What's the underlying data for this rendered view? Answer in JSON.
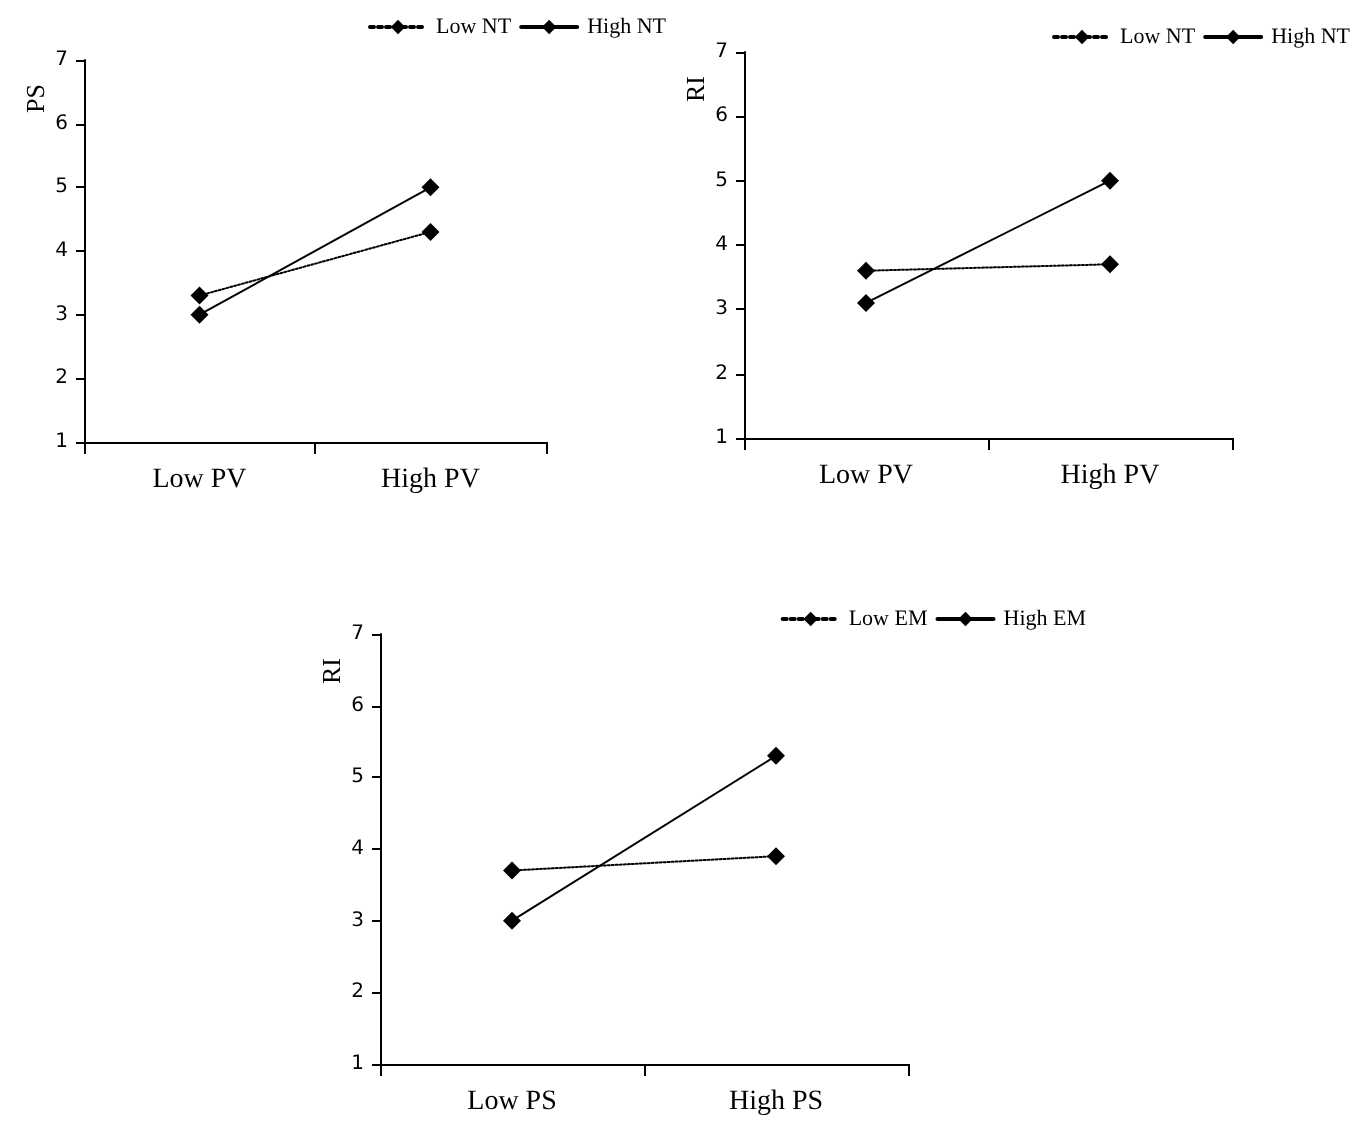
{
  "chart_data": [
    {
      "type": "line",
      "ylabel": "PS",
      "categories": [
        "Low PV",
        "High PV"
      ],
      "ylim": [
        1,
        7
      ],
      "yticks": [
        1,
        2,
        3,
        4,
        5,
        6,
        7
      ],
      "marker": "diamond",
      "legend": "top right",
      "grid": false,
      "series": [
        {
          "name": "Low NT",
          "color": "#000000",
          "line_style": "dotted",
          "values": [
            3.3,
            4.3
          ]
        },
        {
          "name": "High NT",
          "color": "#000000",
          "line_style": "solid",
          "values": [
            3.0,
            5.0
          ]
        }
      ]
    },
    {
      "type": "line",
      "ylabel": "RI",
      "categories": [
        "Low PV",
        "High PV"
      ],
      "ylim": [
        1,
        7
      ],
      "yticks": [
        1,
        2,
        3,
        4,
        5,
        6,
        7
      ],
      "marker": "diamond",
      "legend": "top right",
      "grid": false,
      "series": [
        {
          "name": "Low NT",
          "color": "#000000",
          "line_style": "dotted",
          "values": [
            3.6,
            3.7
          ]
        },
        {
          "name": "High NT",
          "color": "#000000",
          "line_style": "solid",
          "values": [
            3.1,
            5.0
          ]
        }
      ]
    },
    {
      "type": "line",
      "ylabel": "RI",
      "categories": [
        "Low PS",
        "High PS"
      ],
      "ylim": [
        1,
        7
      ],
      "yticks": [
        1,
        2,
        3,
        4,
        5,
        6,
        7
      ],
      "marker": "diamond",
      "legend": "top right",
      "grid": false,
      "series": [
        {
          "name": "Low EM",
          "color": "#000000",
          "line_style": "dotted",
          "values": [
            3.7,
            3.9
          ]
        },
        {
          "name": "High EM",
          "color": "#000000",
          "line_style": "solid",
          "values": [
            3.0,
            5.3
          ]
        }
      ]
    }
  ]
}
